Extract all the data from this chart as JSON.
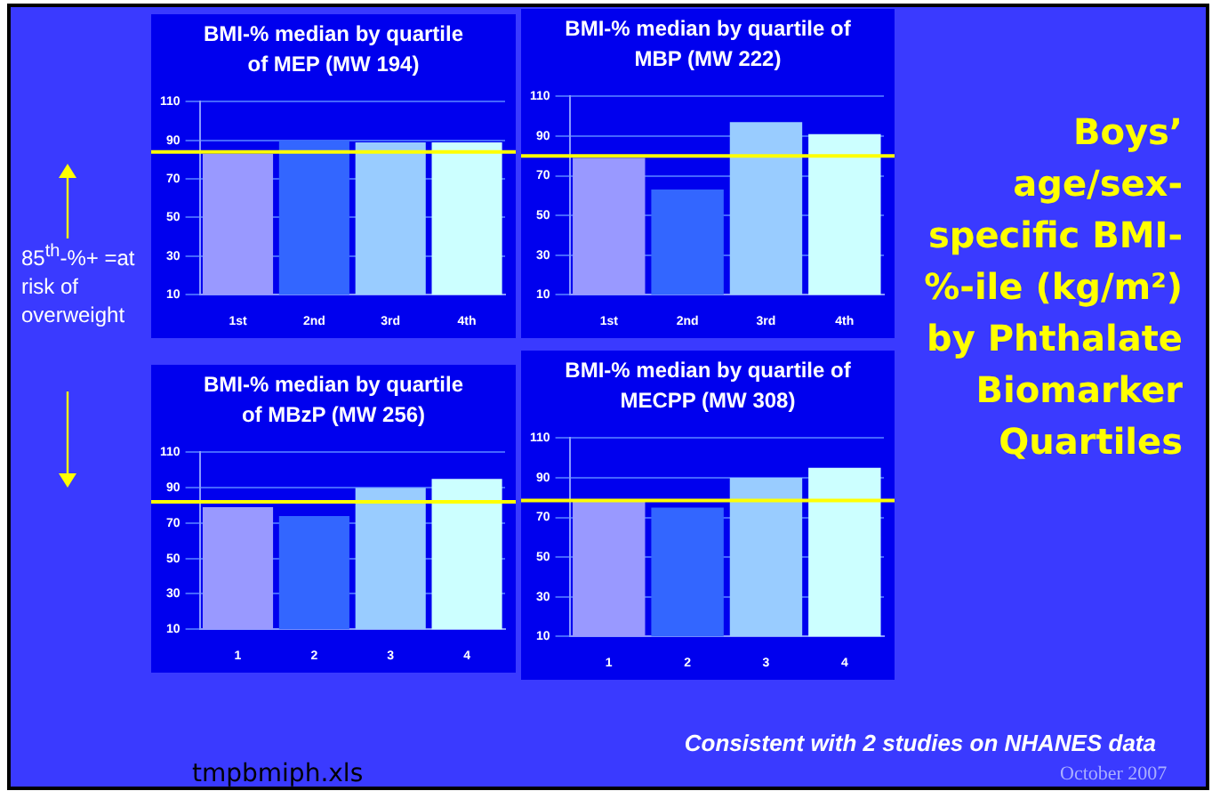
{
  "chart_data": [
    {
      "type": "bar",
      "title": "BMI-% median by quartile of MEP (MW 194)",
      "categories": [
        "1st",
        "2nd",
        "3rd",
        "4th"
      ],
      "values": [
        83,
        90,
        89,
        89
      ],
      "colors": [
        "#9999ff",
        "#3366ff",
        "#99ccff",
        "#ccffff"
      ],
      "ylim": [
        10,
        110
      ],
      "yticks": [
        10,
        30,
        50,
        70,
        90,
        110
      ],
      "grid": "y",
      "ref_lines": [
        {
          "axis": "y",
          "value": 84,
          "color": "#ffff00"
        }
      ]
    },
    {
      "type": "bar",
      "title": "BMI-% median by quartile of MBP (MW 222)",
      "categories": [
        "1st",
        "2nd",
        "3rd",
        "4th"
      ],
      "values": [
        79,
        63,
        97,
        91
      ],
      "colors": [
        "#9999ff",
        "#3366ff",
        "#99ccff",
        "#ccffff"
      ],
      "ylim": [
        10,
        110
      ],
      "yticks": [
        10,
        30,
        50,
        70,
        90,
        110
      ],
      "grid": "y",
      "ref_lines": [
        {
          "axis": "y",
          "value": 80,
          "color": "#ffff00"
        }
      ]
    },
    {
      "type": "bar",
      "title": "BMI-% median by quartile of MBzP (MW 256)",
      "categories": [
        "1",
        "2",
        "3",
        "4"
      ],
      "values": [
        79,
        74,
        90,
        95
      ],
      "colors": [
        "#9999ff",
        "#3366ff",
        "#99ccff",
        "#ccffff"
      ],
      "ylim": [
        10,
        110
      ],
      "yticks": [
        10,
        30,
        50,
        70,
        90,
        110
      ],
      "grid": "y",
      "ref_lines": [
        {
          "axis": "y",
          "value": 82,
          "color": "#ffff00"
        }
      ]
    },
    {
      "type": "bar",
      "title": "BMI-% median by quartile of MECPP (MW 308)",
      "categories": [
        "1",
        "2",
        "3",
        "4"
      ],
      "values": [
        78,
        75,
        90,
        95
      ],
      "colors": [
        "#9999ff",
        "#3366ff",
        "#99ccff",
        "#ccffff"
      ],
      "ylim": [
        10,
        110
      ],
      "yticks": [
        10,
        30,
        50,
        70,
        90,
        110
      ],
      "grid": "y",
      "ref_lines": [
        {
          "axis": "y",
          "value": 78.5,
          "color": "#ffff00"
        }
      ]
    },
    {
      "type": "other",
      "title": "Boys’ age/sex-specific BMI-%-ile (kg/m²) by Phthalate Biomarker Quartiles",
      "annotations": [
        "85$^{th}$-%+ =at risk of overweight",
        "Consistent with 2 studies on NHANES data",
        "tmpbmiph.xls",
        "October 2007"
      ]
    }
  ]
}
